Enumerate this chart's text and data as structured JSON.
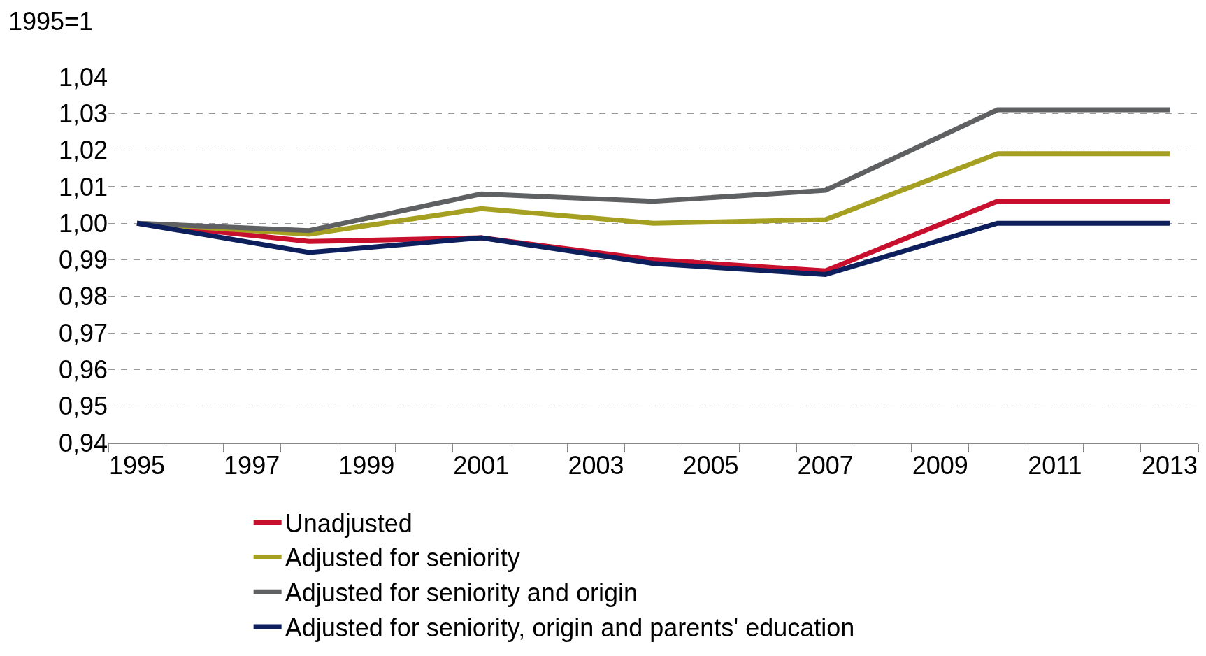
{
  "chart_data": {
    "type": "line",
    "ylabel": "1995=1",
    "x": [
      1995,
      1998,
      2001,
      2004,
      2007,
      2010,
      2013
    ],
    "xlim": [
      1994.5,
      2013.5
    ],
    "xticks": [
      1995,
      1997,
      1999,
      2001,
      2003,
      2005,
      2007,
      2009,
      2011,
      2013
    ],
    "ylim": [
      0.94,
      1.04
    ],
    "yticks": [
      {
        "value": 0.94,
        "label": "0,94"
      },
      {
        "value": 0.95,
        "label": "0,95"
      },
      {
        "value": 0.96,
        "label": "0,96"
      },
      {
        "value": 0.97,
        "label": "0,97"
      },
      {
        "value": 0.98,
        "label": "0,98"
      },
      {
        "value": 0.99,
        "label": "0,99"
      },
      {
        "value": 1.0,
        "label": "1,00"
      },
      {
        "value": 1.01,
        "label": "1,01"
      },
      {
        "value": 1.02,
        "label": "1,02"
      },
      {
        "value": 1.03,
        "label": "1,03"
      },
      {
        "value": 1.04,
        "label": "1,04"
      }
    ],
    "grid": "y",
    "legend": "bottom",
    "marker": "none",
    "line_style": "solid",
    "series": [
      {
        "name": "Unadjusted",
        "color": "#c8102e",
        "values": [
          1.0,
          0.995,
          0.996,
          0.99,
          0.987,
          1.006,
          1.006
        ]
      },
      {
        "name": "Adjusted for seniority",
        "color": "#a5a021",
        "values": [
          1.0,
          0.997,
          1.004,
          1.0,
          1.001,
          1.019,
          1.019
        ]
      },
      {
        "name": "Adjusted for seniority and origin",
        "color": "#5f6062",
        "values": [
          1.0,
          0.998,
          1.008,
          1.006,
          1.009,
          1.031,
          1.031
        ]
      },
      {
        "name": "Adjusted for seniority, origin and parents' education",
        "color": "#0d1f5c",
        "values": [
          1.0,
          0.992,
          0.996,
          0.989,
          0.986,
          1.0,
          1.0
        ]
      }
    ]
  }
}
